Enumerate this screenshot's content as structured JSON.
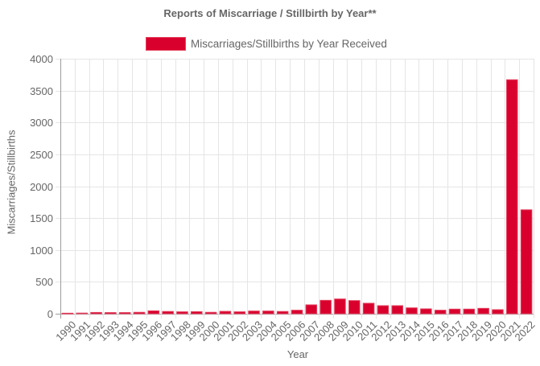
{
  "chart": {
    "title": "Reports of Miscarriage / Stillbirth by Year**",
    "legend_label": "Miscarriages/Stillbirths by Year Received",
    "xlabel": "Year",
    "ylabel": "Miscarriages/Stillbirths",
    "bar_color": "#d9002d",
    "bar_border_color": "#e4405e",
    "grid_color": "#e5e5e5",
    "axis_color": "#9e9e9e"
  },
  "chart_data": {
    "type": "bar",
    "title": "Reports of Miscarriage / Stillbirth by Year**",
    "xlabel": "Year",
    "ylabel": "Miscarriages/Stillbirths",
    "ylim": [
      0,
      4000
    ],
    "yticks": [
      0,
      500,
      1000,
      1500,
      2000,
      2500,
      3000,
      3500,
      4000
    ],
    "grid": true,
    "legend_position": "top",
    "categories": [
      "1990",
      "1991",
      "1992",
      "1993",
      "1994",
      "1995",
      "1996",
      "1997",
      "1998",
      "1999",
      "2000",
      "2001",
      "2002",
      "2003",
      "2004",
      "2005",
      "2006",
      "2007",
      "2008",
      "2009",
      "2010",
      "2011",
      "2012",
      "2013",
      "2014",
      "2015",
      "2016",
      "2017",
      "2018",
      "2019",
      "2020",
      "2021",
      "2022"
    ],
    "series": [
      {
        "name": "Miscarriages/Stillbirths by Year Received",
        "values": [
          8,
          10,
          20,
          18,
          18,
          22,
          45,
          35,
          30,
          32,
          22,
          37,
          30,
          42,
          42,
          35,
          55,
          139,
          210,
          231,
          206,
          164,
          126,
          126,
          92,
          76,
          55,
          72,
          72,
          84,
          63,
          3670,
          1630
        ]
      }
    ]
  }
}
